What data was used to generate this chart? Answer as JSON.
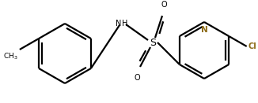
{
  "bg_color": "#ffffff",
  "line_color": "#000000",
  "label_color": "#000000",
  "n_color": "#8B6914",
  "cl_color": "#8B6914",
  "bond_lw": 1.6,
  "figsize": [
    3.26,
    1.31
  ],
  "dpi": 100,
  "xlim": [
    0,
    326
  ],
  "ylim": [
    0,
    131
  ]
}
